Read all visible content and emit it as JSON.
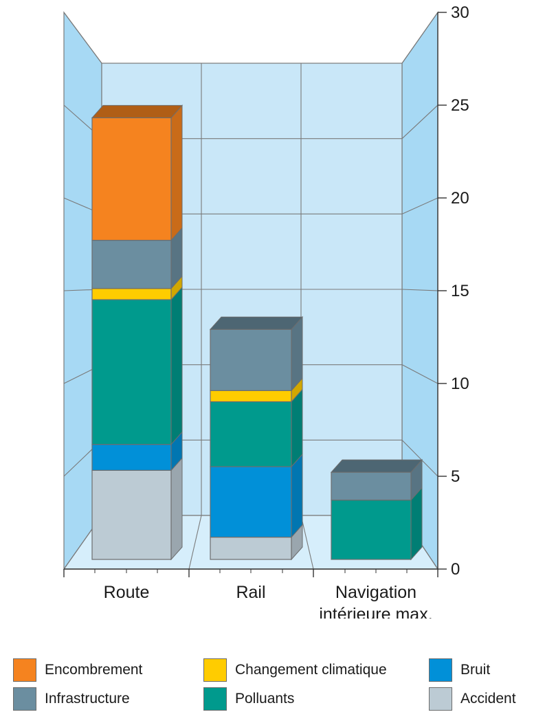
{
  "chart_data": {
    "type": "bar",
    "stacked": true,
    "categories": [
      "Route",
      "Rail",
      "Navigation intérieure max."
    ],
    "category_lines": [
      [
        "Route"
      ],
      [
        "Rail"
      ],
      [
        "Navigation",
        "intérieure max."
      ]
    ],
    "series": [
      {
        "name": "Accident",
        "color": "#bccbd4",
        "values": [
          4.8,
          1.2,
          0
        ]
      },
      {
        "name": "Bruit",
        "color": "#0190d8",
        "values": [
          1.4,
          3.8,
          0
        ]
      },
      {
        "name": "Polluants",
        "color": "#009a8d",
        "values": [
          7.8,
          3.5,
          3.2
        ]
      },
      {
        "name": "Changement climatique",
        "color": "#ffcc00",
        "values": [
          0.6,
          0.6,
          0
        ]
      },
      {
        "name": "Infrastructure",
        "color": "#6b8ea0",
        "values": [
          2.6,
          3.3,
          1.5
        ]
      },
      {
        "name": "Encombrement",
        "color": "#f5831f",
        "values": [
          6.6,
          0,
          0
        ]
      }
    ],
    "ylim": [
      0,
      30
    ],
    "yticks": [
      "0",
      "5",
      "10",
      "15",
      "20",
      "25",
      "30"
    ],
    "grid": true,
    "legend_position": "bottom",
    "title": "",
    "xlabel": "",
    "ylabel": ""
  },
  "legend": {
    "items": [
      {
        "label": "Encombrement",
        "color": "#f5831f"
      },
      {
        "label": "Changement climatique",
        "color": "#ffcc00"
      },
      {
        "label": "Bruit",
        "color": "#0190d8"
      },
      {
        "label": "Infrastructure",
        "color": "#6b8ea0"
      },
      {
        "label": "Polluants",
        "color": "#009a8d"
      },
      {
        "label": "Accident",
        "color": "#bccbd4"
      }
    ]
  }
}
